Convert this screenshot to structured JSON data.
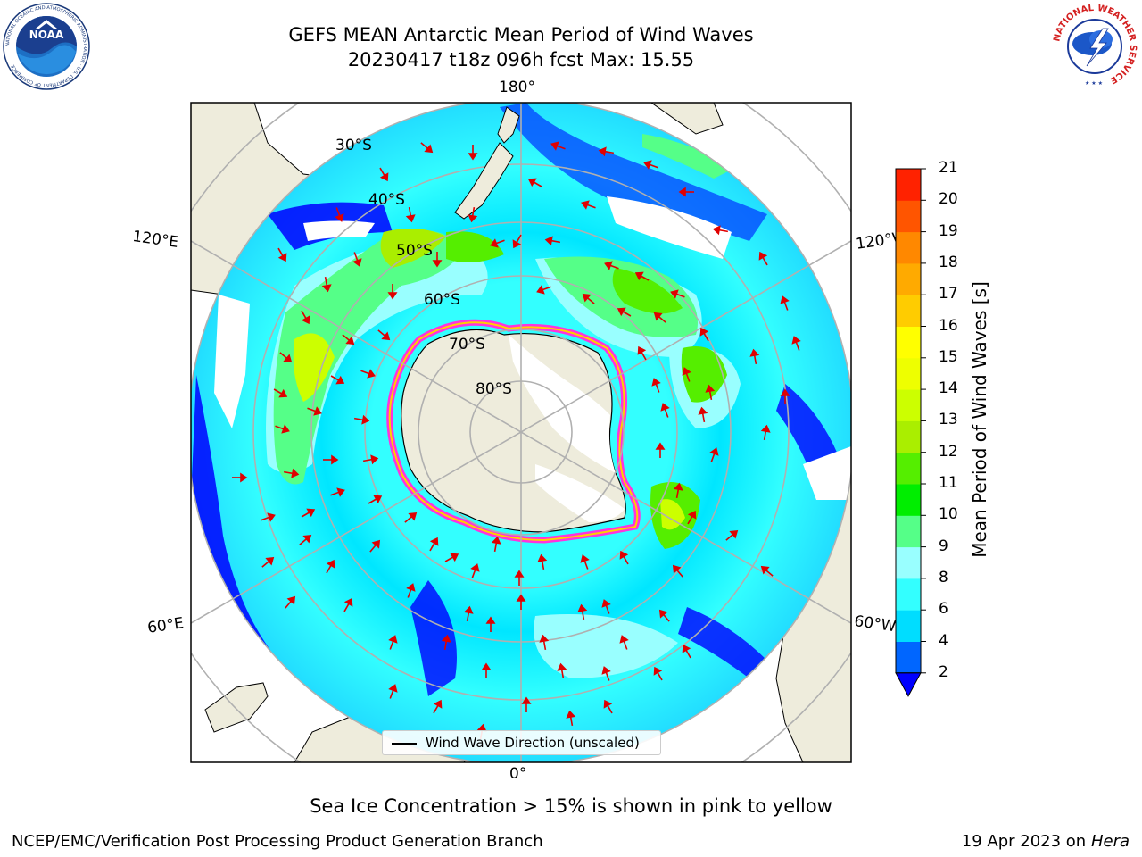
{
  "title": {
    "line1": "GEFS MEAN Antarctic Mean Period of Wind Waves",
    "line2": "20230417 t18z 096h fcst   Max: 15.55"
  },
  "logos": {
    "left": "NOAA",
    "left_ring": "NATIONAL OCEANIC AND ATMOSPHERIC ADMINISTRATION · U.S. DEPARTMENT OF COMMERCE",
    "right_ring": "NATIONAL WEATHER SERVICE"
  },
  "map": {
    "projection": "south-polar-stereographic",
    "longitude_labels": {
      "top": "180°",
      "bottom": "0°",
      "upper_left": "120°E",
      "upper_right": "120°W",
      "lower_left": "60°E",
      "lower_right": "60°W"
    },
    "latitude_labels": [
      "30°S",
      "40°S",
      "50°S",
      "60°S",
      "70°S",
      "80°S"
    ],
    "land_color": "#eeecdc",
    "ice_edge_colors": [
      "#ff33dd",
      "#ffd000"
    ],
    "arrow_color": "#e00000",
    "legend": "Wind Wave Direction (unscaled)"
  },
  "colorbar": {
    "label": "Mean Period of Wind Waves [s]",
    "ticks": [
      "2",
      "4",
      "6",
      "8",
      "9",
      "10",
      "11",
      "12",
      "13",
      "14",
      "15",
      "16",
      "17",
      "18",
      "19",
      "20",
      "21"
    ],
    "colors": [
      "#0066ff",
      "#00ddff",
      "#33ffff",
      "#99ffff",
      "#55ff88",
      "#00ee00",
      "#55ee00",
      "#aaee00",
      "#ccff00",
      "#eeff00",
      "#ffff00",
      "#ffcc00",
      "#ffaa00",
      "#ff8800",
      "#ff5500",
      "#ff2200"
    ],
    "extend_color": "#0000ff"
  },
  "ice_note": "Sea Ice Concentration > 15% is shown in pink to yellow",
  "footer": {
    "left": "NCEP/EMC/Verification Post Processing Product Generation Branch",
    "right_date": "19 Apr 2023 on ",
    "right_machine": "Hera"
  }
}
